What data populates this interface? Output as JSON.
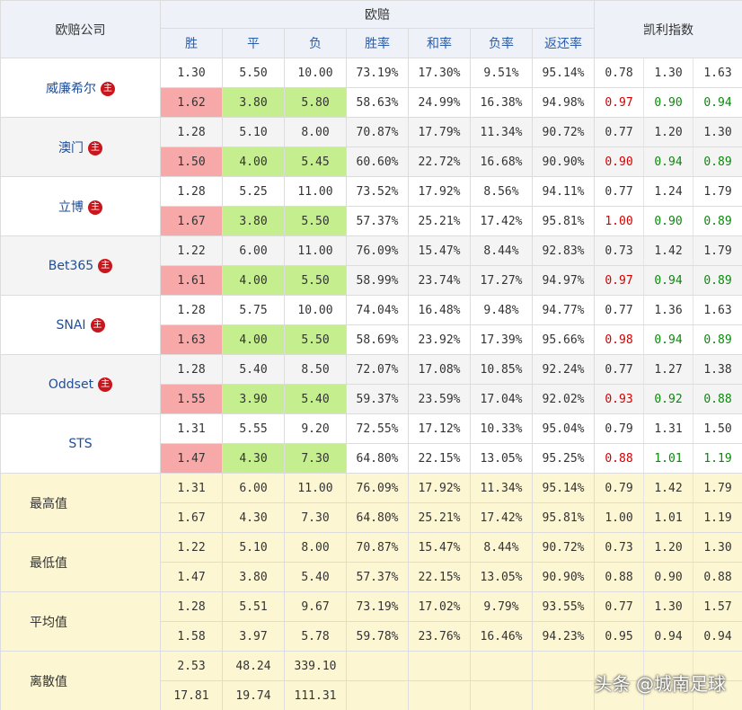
{
  "header": {
    "company": "欧赔公司",
    "odds": "欧赔",
    "kelly": "凯利指数",
    "columns": [
      "胜",
      "平",
      "负",
      "胜率",
      "和率",
      "负率",
      "返还率"
    ]
  },
  "companies": [
    {
      "name": "威廉希尔",
      "badge": "主",
      "rows": [
        [
          "1.30",
          "5.50",
          "10.00",
          "73.19%",
          "17.30%",
          "9.51%",
          "95.14%",
          "0.78",
          "1.30",
          "1.63"
        ],
        [
          "1.62",
          "3.80",
          "5.80",
          "58.63%",
          "24.99%",
          "16.38%",
          "94.98%",
          "0.97",
          "0.90",
          "0.94"
        ]
      ]
    },
    {
      "name": "澳门",
      "badge": "主",
      "rows": [
        [
          "1.28",
          "5.10",
          "8.00",
          "70.87%",
          "17.79%",
          "11.34%",
          "90.72%",
          "0.77",
          "1.20",
          "1.30"
        ],
        [
          "1.50",
          "4.00",
          "5.45",
          "60.60%",
          "22.72%",
          "16.68%",
          "90.90%",
          "0.90",
          "0.94",
          "0.89"
        ]
      ]
    },
    {
      "name": "立博",
      "badge": "主",
      "rows": [
        [
          "1.28",
          "5.25",
          "11.00",
          "73.52%",
          "17.92%",
          "8.56%",
          "94.11%",
          "0.77",
          "1.24",
          "1.79"
        ],
        [
          "1.67",
          "3.80",
          "5.50",
          "57.37%",
          "25.21%",
          "17.42%",
          "95.81%",
          "1.00",
          "0.90",
          "0.89"
        ]
      ]
    },
    {
      "name": "Bet365",
      "badge": "主",
      "rows": [
        [
          "1.22",
          "6.00",
          "11.00",
          "76.09%",
          "15.47%",
          "8.44%",
          "92.83%",
          "0.73",
          "1.42",
          "1.79"
        ],
        [
          "1.61",
          "4.00",
          "5.50",
          "58.99%",
          "23.74%",
          "17.27%",
          "94.97%",
          "0.97",
          "0.94",
          "0.89"
        ]
      ]
    },
    {
      "name": "SNAI",
      "badge": "主",
      "rows": [
        [
          "1.28",
          "5.75",
          "10.00",
          "74.04%",
          "16.48%",
          "9.48%",
          "94.77%",
          "0.77",
          "1.36",
          "1.63"
        ],
        [
          "1.63",
          "4.00",
          "5.50",
          "58.69%",
          "23.92%",
          "17.39%",
          "95.66%",
          "0.98",
          "0.94",
          "0.89"
        ]
      ]
    },
    {
      "name": "Oddset",
      "badge": "主",
      "rows": [
        [
          "1.28",
          "5.40",
          "8.50",
          "72.07%",
          "17.08%",
          "10.85%",
          "92.24%",
          "0.77",
          "1.27",
          "1.38"
        ],
        [
          "1.55",
          "3.90",
          "5.40",
          "59.37%",
          "23.59%",
          "17.04%",
          "92.02%",
          "0.93",
          "0.92",
          "0.88"
        ]
      ]
    },
    {
      "name": "STS",
      "rows": [
        [
          "1.31",
          "5.55",
          "9.20",
          "72.55%",
          "17.12%",
          "10.33%",
          "95.04%",
          "0.79",
          "1.31",
          "1.50"
        ],
        [
          "1.47",
          "4.30",
          "7.30",
          "64.80%",
          "22.15%",
          "13.05%",
          "95.25%",
          "0.88",
          "1.01",
          "1.19"
        ]
      ]
    }
  ],
  "summary": [
    {
      "label": "最高值",
      "rows": [
        [
          "1.31",
          "6.00",
          "11.00",
          "76.09%",
          "17.92%",
          "11.34%",
          "95.14%",
          "0.79",
          "1.42",
          "1.79"
        ],
        [
          "1.67",
          "4.30",
          "7.30",
          "64.80%",
          "25.21%",
          "17.42%",
          "95.81%",
          "1.00",
          "1.01",
          "1.19"
        ]
      ]
    },
    {
      "label": "最低值",
      "rows": [
        [
          "1.22",
          "5.10",
          "8.00",
          "70.87%",
          "15.47%",
          "8.44%",
          "90.72%",
          "0.73",
          "1.20",
          "1.30"
        ],
        [
          "1.47",
          "3.80",
          "5.40",
          "57.37%",
          "22.15%",
          "13.05%",
          "90.90%",
          "0.88",
          "0.90",
          "0.88"
        ]
      ]
    },
    {
      "label": "平均值",
      "rows": [
        [
          "1.28",
          "5.51",
          "9.67",
          "73.19%",
          "17.02%",
          "9.79%",
          "93.55%",
          "0.77",
          "1.30",
          "1.57"
        ],
        [
          "1.58",
          "3.97",
          "5.78",
          "59.78%",
          "23.76%",
          "16.46%",
          "94.23%",
          "0.95",
          "0.94",
          "0.94"
        ]
      ]
    },
    {
      "label": "离散值",
      "rows": [
        [
          "2.53",
          "48.24",
          "339.10"
        ],
        [
          "17.81",
          "19.74",
          "111.31"
        ]
      ]
    }
  ],
  "watermark": "头条 @城南足球"
}
